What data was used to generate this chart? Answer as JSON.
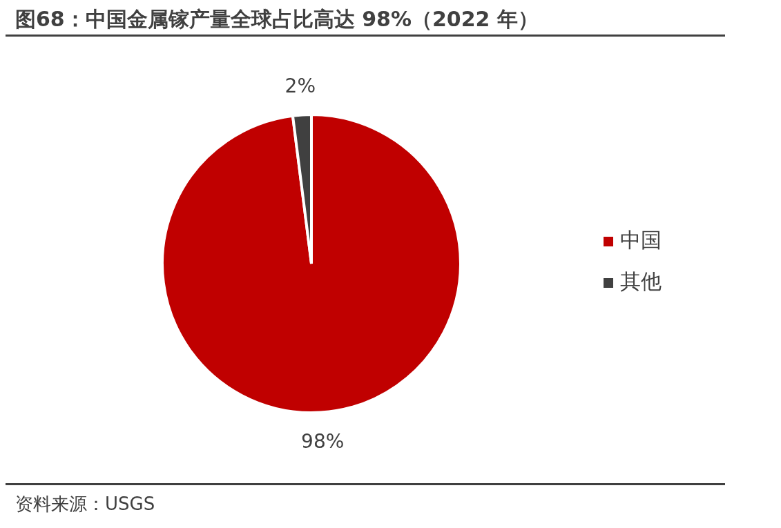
{
  "chart_data": {
    "type": "pie",
    "title": "图68：中国金属镓产量全球占比高达 98%（2022 年）",
    "categories": [
      "中国",
      "其他"
    ],
    "values": [
      98,
      2
    ],
    "colors": [
      "#c00000",
      "#404040"
    ],
    "value_labels": [
      "98%",
      "2%"
    ],
    "legend": "right",
    "annotations": [
      "资料来源：USGS"
    ]
  }
}
